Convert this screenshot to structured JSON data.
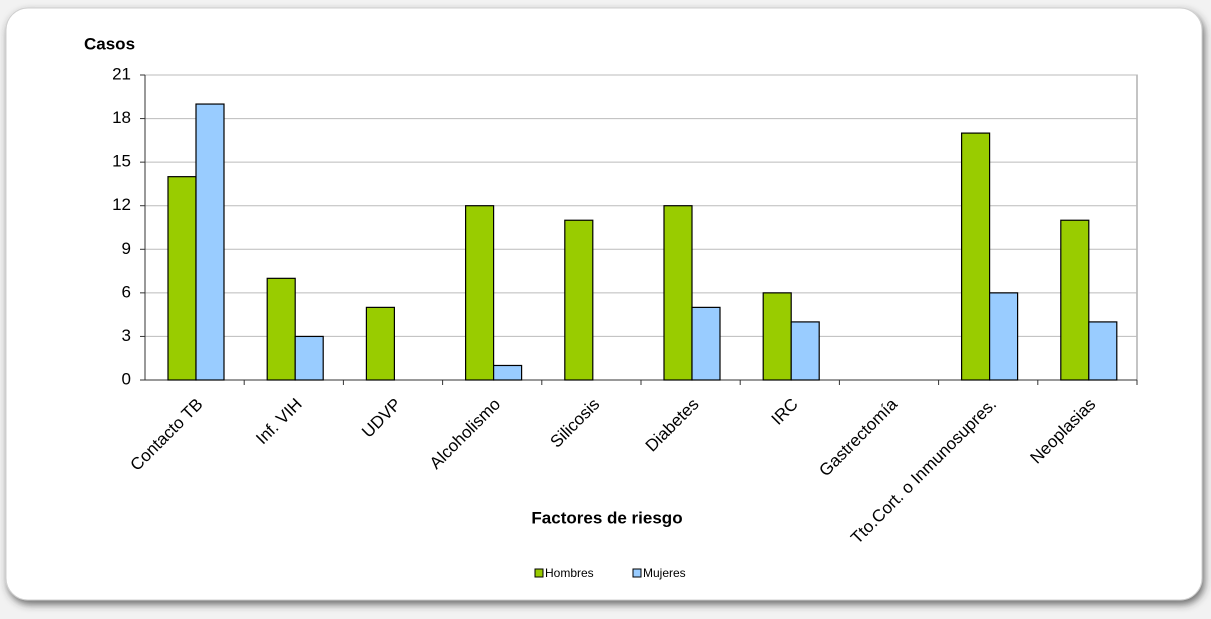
{
  "chart_data": {
    "type": "bar",
    "y_label": "Casos",
    "x_label": "Factores de riesgo",
    "categories": [
      "Contacto TB",
      "Inf. VIH",
      "UDVP",
      "Alcoholismo",
      "Silicosis",
      "Diabetes",
      "IRC",
      "Gastrectomía",
      "Tto.Cort. o Inmunosupres.",
      "Neoplasias"
    ],
    "series": [
      {
        "name": "Hombres",
        "color": "#99cc00",
        "values": [
          14,
          7,
          5,
          12,
          11,
          12,
          6,
          0,
          17,
          11
        ]
      },
      {
        "name": "Mujeres",
        "color": "#99ccff",
        "values": [
          19,
          3,
          0,
          1,
          0,
          5,
          4,
          0,
          6,
          4
        ]
      }
    ],
    "ylim": [
      0,
      21
    ],
    "yticks": [
      0,
      3,
      6,
      9,
      12,
      15,
      18,
      21
    ],
    "grid": true,
    "legend": "bottom"
  }
}
